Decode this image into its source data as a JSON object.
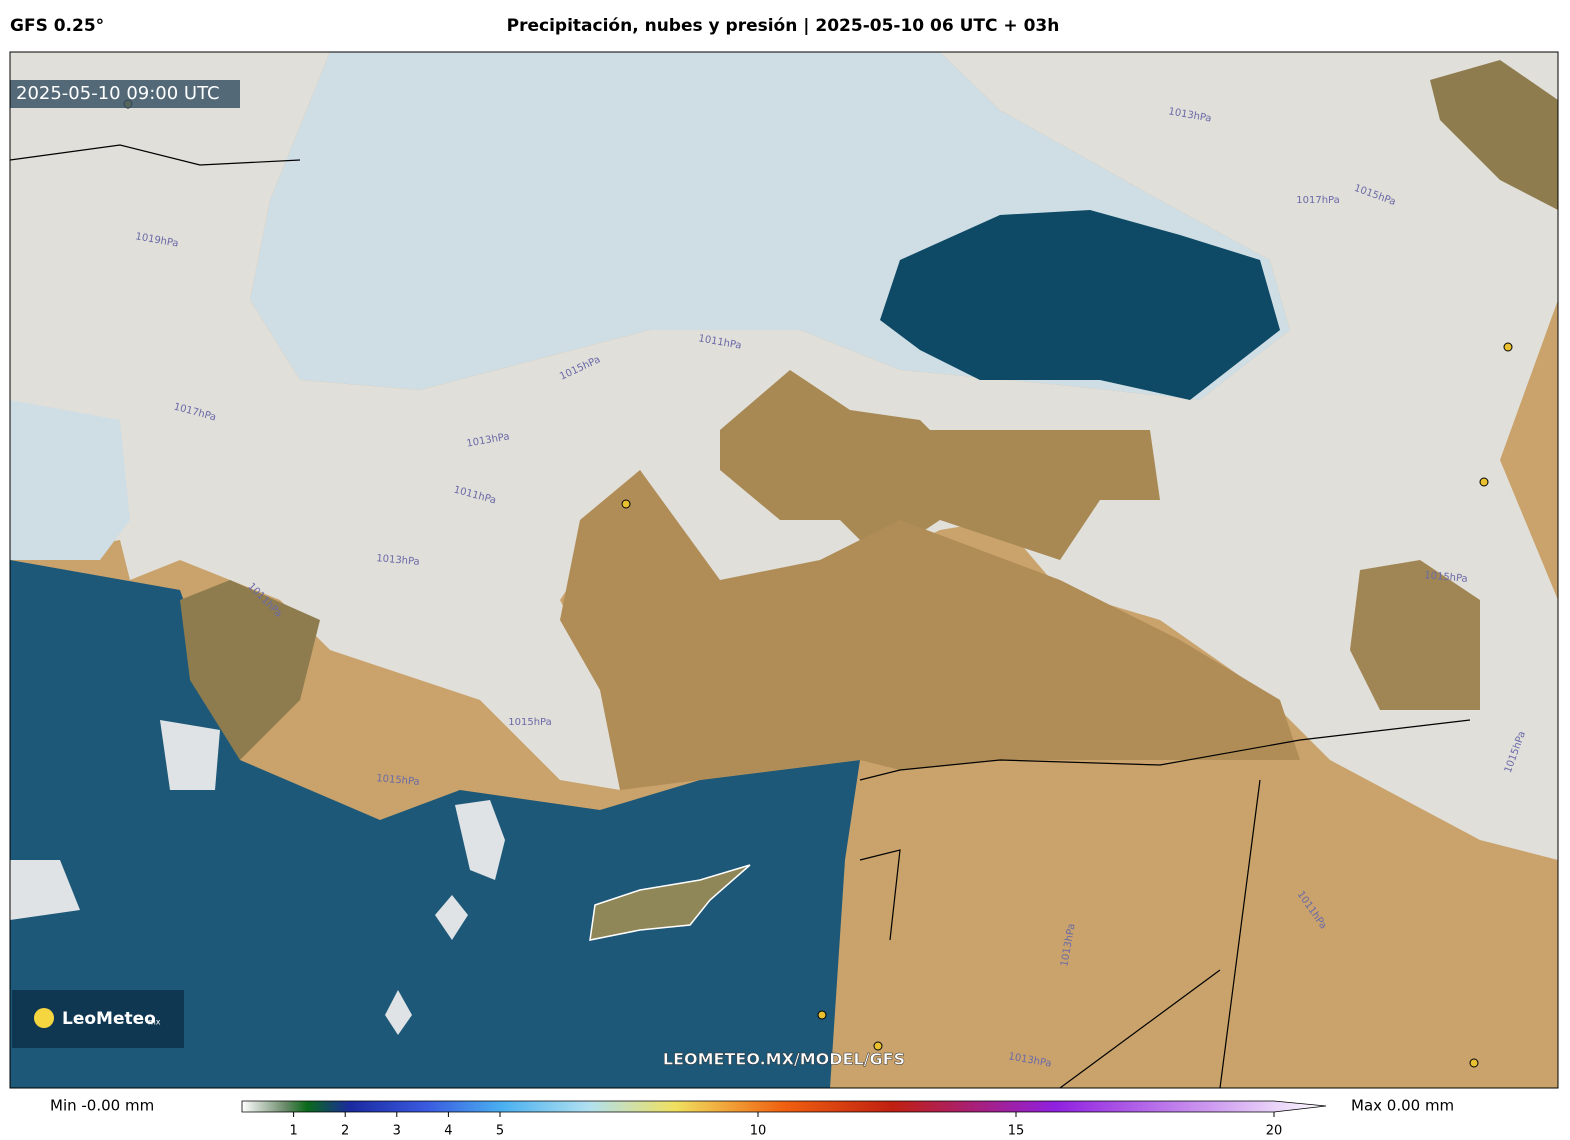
{
  "header": {
    "model": "GFS 0.25°",
    "title": "Precipitación, nubes y presión | 2025-05-10 06 UTC + 03h"
  },
  "map": {
    "timestamp": "2025-05-10 09:00 UTC",
    "watermark": "LEOMETEO.MX/MODEL/GFS",
    "logo": "LeoMeteo",
    "logo_suffix": "mx",
    "isobar_labels": [
      "1013hPa",
      "1015hPa",
      "1017hPa",
      "1019hPa",
      "1011hPa",
      "1015hPa",
      "1017hPa",
      "1013hPa",
      "1011hPa",
      "1013hPa",
      "1011hPa",
      "1015hPa",
      "1015hPa",
      "1015hPa",
      "1015hPa",
      "1011hPa",
      "1013hPa",
      "1013hPa"
    ]
  },
  "colorbar": {
    "min_label": "Min -0.00 mm",
    "max_label": "Max 0.00 mm",
    "range": [
      0,
      20
    ],
    "ticks": [
      1,
      2,
      3,
      4,
      5,
      10,
      15,
      20
    ]
  }
}
